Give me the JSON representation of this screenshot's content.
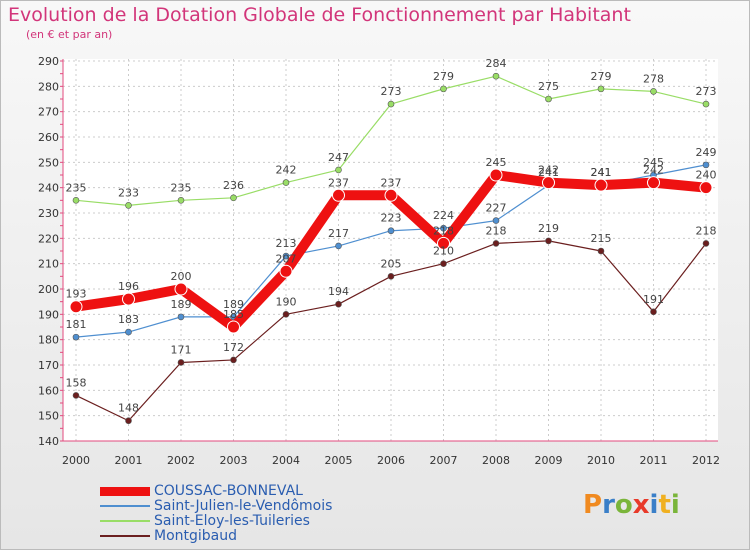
{
  "chart_data": {
    "type": "line",
    "title": "Evolution de la Dotation Globale de Fonctionnement par Habitant",
    "subtitle": "(en € et par an)",
    "categories": [
      "2000",
      "2001",
      "2002",
      "2003",
      "2004",
      "2005",
      "2006",
      "2007",
      "2008",
      "2009",
      "2010",
      "2011",
      "2012"
    ],
    "ylim": [
      140,
      290
    ],
    "yticks": [
      140,
      150,
      160,
      170,
      180,
      190,
      200,
      210,
      220,
      230,
      240,
      250,
      260,
      270,
      280,
      290
    ],
    "series": [
      {
        "name": "COUSSAC-BONNEVAL",
        "color": "#ee1111",
        "values": [
          193,
          196,
          200,
          185,
          207,
          237,
          237,
          218,
          245,
          242,
          241,
          242,
          240
        ]
      },
      {
        "name": "Saint-Julien-le-Vendômois",
        "color": "#4f8fd0",
        "values": [
          181,
          183,
          189,
          189,
          213,
          217,
          223,
          224,
          227,
          241,
          241,
          245,
          249
        ]
      },
      {
        "name": "Saint-Eloy-les-Tuileries",
        "color": "#99dd66",
        "values": [
          235,
          233,
          235,
          236,
          242,
          247,
          273,
          279,
          284,
          275,
          279,
          278,
          273
        ]
      },
      {
        "name": "Montgibaud",
        "color": "#6b1f1f",
        "values": [
          158,
          148,
          171,
          172,
          190,
          194,
          205,
          210,
          218,
          219,
          215,
          191,
          218
        ]
      }
    ]
  },
  "logo_text": "Proxiti"
}
